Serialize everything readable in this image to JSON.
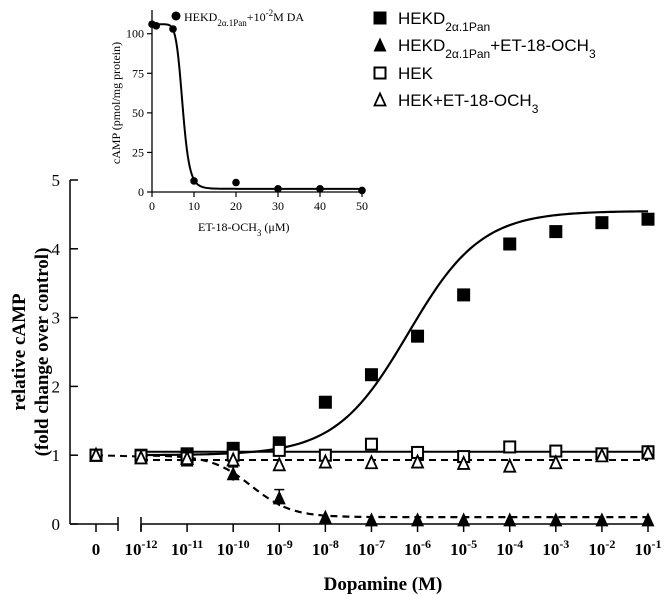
{
  "chart_data": [
    {
      "type": "scatter",
      "xlabel": "Dopamine (M)",
      "ylabel": "relative cAMP",
      "ylabel2": "(fold change over control)",
      "x_ticks": [
        "0",
        "10",
        "10",
        "10",
        "10",
        "10",
        "10",
        "10",
        "10",
        "10",
        "10",
        "10",
        "10"
      ],
      "x_tick_exponents": [
        "",
        "-12",
        "-11",
        "-10",
        "-9",
        "-8",
        "-7",
        "-6",
        "-5",
        "-4",
        "-3",
        "-2",
        "-1"
      ],
      "x_log_exponents": [
        null,
        -12,
        -11,
        -10,
        -9,
        -8,
        -7,
        -6,
        -5,
        -4,
        -3,
        -2,
        -1
      ],
      "y_ticks": [
        "0",
        "1",
        "2",
        "3",
        "4",
        "5"
      ],
      "ylim": [
        0,
        5
      ],
      "xscale": "log",
      "legend_position": "top-right",
      "series": [
        {
          "name": "HEKD2α.1Pan",
          "legend_main": "HEKD",
          "legend_sub": "2α.1Pan",
          "legend_suffix": "",
          "marker": "filled-square",
          "line": "solid",
          "zero_value": 1.0,
          "x": [
            -12,
            -11,
            -10,
            -9,
            -8,
            -7,
            -6,
            -5,
            -4,
            -3,
            -2,
            -1
          ],
          "y": [
            1.0,
            1.02,
            1.1,
            1.18,
            1.77,
            2.17,
            2.73,
            3.33,
            4.07,
            4.25,
            4.38,
            4.43
          ]
        },
        {
          "name": "HEKD2α.1Pan+ET-18-OCH3",
          "legend_main": "HEKD",
          "legend_sub": "2α.1Pan",
          "legend_suffix": "+ET-18-OCH",
          "legend_suffix_sub": "3",
          "marker": "filled-triangle",
          "line": "dashed",
          "zero_value": 1.0,
          "x": [
            -12,
            -11,
            -10,
            -9,
            -8,
            -7,
            -6,
            -5,
            -4,
            -3,
            -2,
            -1
          ],
          "y": [
            0.98,
            0.93,
            0.73,
            0.38,
            0.1,
            0.06,
            0.06,
            0.06,
            0.06,
            0.06,
            0.06,
            0.06
          ]
        },
        {
          "name": "HEK",
          "legend_main": "HEK",
          "legend_sub": "",
          "legend_suffix": "",
          "marker": "open-square",
          "line": "solid",
          "zero_value": 1.0,
          "x": [
            -12,
            -11,
            -10,
            -9,
            -8,
            -7,
            -6,
            -5,
            -4,
            -3,
            -2,
            -1
          ],
          "y": [
            0.99,
            0.96,
            1.0,
            1.07,
            1.0,
            1.16,
            1.04,
            0.98,
            1.12,
            1.06,
            1.02,
            1.05
          ]
        },
        {
          "name": "HEK+ET-18-OCH3",
          "legend_main": "HEK+ET-18-OCH",
          "legend_sub": "",
          "legend_suffix": "",
          "legend_suffix_sub": "3",
          "marker": "open-triangle",
          "line": "dashed",
          "zero_value": 1.0,
          "x": [
            -12,
            -11,
            -10,
            -9,
            -8,
            -7,
            -6,
            -5,
            -4,
            -3,
            -2,
            -1
          ],
          "y": [
            0.96,
            0.95,
            0.93,
            0.86,
            0.9,
            0.89,
            0.9,
            0.88,
            0.84,
            0.89,
            0.99,
            1.03
          ]
        }
      ]
    },
    {
      "type": "line",
      "xlabel_main": "ET-18-OCH",
      "xlabel_sub": "3",
      "xlabel_unit": " (μM)",
      "ylabel": "cAMP (pmol/mg protein)",
      "legend_main": "HEKD",
      "legend_sub": "2α.1Pan",
      "legend_suffix": "+10",
      "legend_sup": "-2",
      "legend_tail": "M DA",
      "x_ticks": [
        "0",
        "10",
        "20",
        "30",
        "40",
        "50"
      ],
      "y_ticks": [
        "0",
        "25",
        "50",
        "75",
        "100"
      ],
      "xlim": [
        0,
        50
      ],
      "ylim": [
        0,
        115
      ],
      "x": [
        0,
        1,
        5,
        10,
        20,
        30,
        40,
        50
      ],
      "y": [
        106,
        105,
        103,
        7,
        6,
        2,
        2,
        1
      ]
    }
  ]
}
